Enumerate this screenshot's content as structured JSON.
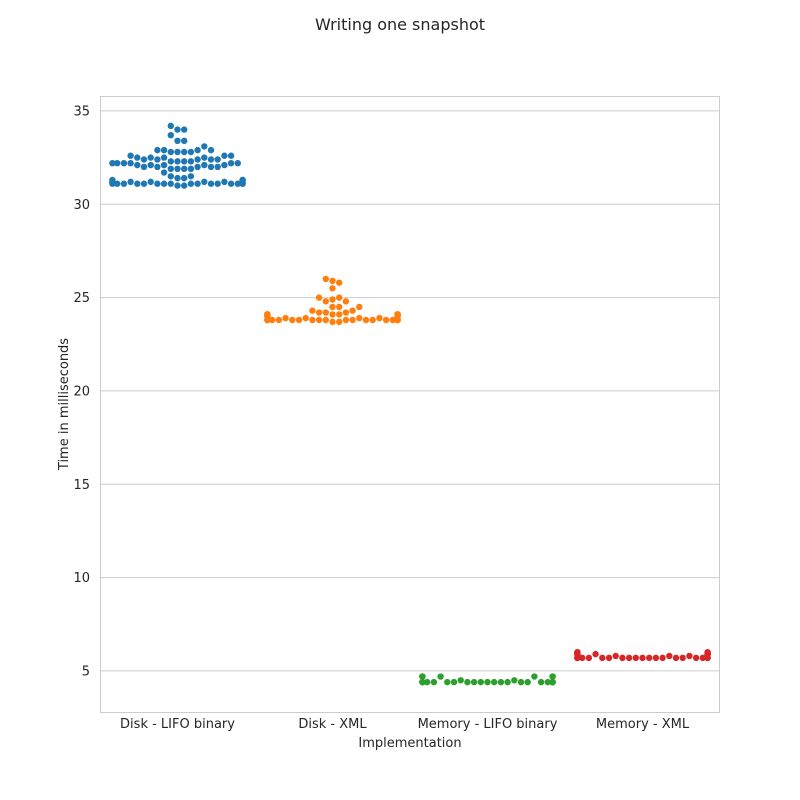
{
  "chart_data": {
    "type": "scatter",
    "subtype": "swarm",
    "title": "Writing one snapshot",
    "xlabel": "Implementation",
    "ylabel": "Time in milliseconds",
    "ylim": [
      2.8,
      35.8
    ],
    "yticks": [
      5,
      10,
      15,
      20,
      25,
      30,
      35
    ],
    "grid": true,
    "categories": [
      "Disk - LIFO binary",
      "Disk - XML",
      "Memory - LIFO binary",
      "Memory - XML"
    ],
    "colors": [
      "#1f77b4",
      "#ff7f0e",
      "#2ca02c",
      "#d62728"
    ],
    "series": [
      {
        "values": [
          34.2,
          34.0,
          34.0,
          33.7,
          33.4,
          33.4,
          33.1,
          32.9,
          32.9,
          32.9,
          32.9,
          32.8,
          32.8,
          32.8,
          32.8,
          32.6,
          32.6,
          32.6,
          32.5,
          32.5,
          32.5,
          32.5,
          32.4,
          32.4,
          32.4,
          32.4,
          32.4,
          32.3,
          32.3,
          32.3,
          32.3,
          32.2,
          32.2,
          32.2,
          32.2,
          32.2,
          32.2,
          32.1,
          32.1,
          32.1,
          32.1,
          32.1,
          32.0,
          32.0,
          32.0,
          32.0,
          32.0,
          31.9,
          31.9,
          31.9,
          31.9,
          31.7,
          31.5,
          31.5,
          31.4,
          31.4,
          31.3,
          31.3,
          31.3,
          31.2,
          31.2,
          31.2,
          31.2,
          31.2,
          31.2,
          31.2,
          31.1,
          31.1,
          31.1,
          31.1,
          31.1,
          31.1,
          31.1,
          31.1,
          31.1,
          31.1,
          31.1,
          31.1,
          31.1,
          31.1,
          31.1,
          31.1,
          31.0,
          31.0
        ]
      },
      {
        "values": [
          26.0,
          25.9,
          25.8,
          25.5,
          25.0,
          25.0,
          24.9,
          24.8,
          24.8,
          24.5,
          24.5,
          24.5,
          24.3,
          24.3,
          24.2,
          24.2,
          24.2,
          24.1,
          24.1,
          24.1,
          24.1,
          24.1,
          24.1,
          24.1,
          24.1,
          24.1,
          24.1,
          24.1,
          24.1,
          24.1,
          24.1,
          24.0,
          24.0,
          24.0,
          24.0,
          23.9,
          23.9,
          23.9,
          23.9,
          23.8,
          23.8,
          23.8,
          23.8,
          23.8,
          23.8,
          23.8,
          23.8,
          23.8,
          23.8,
          23.8,
          23.8,
          23.8,
          23.8,
          23.8,
          23.8,
          23.8,
          23.8,
          23.8,
          23.8,
          23.7,
          23.7
        ]
      },
      {
        "values": [
          4.7,
          4.7,
          4.7,
          4.7,
          4.7,
          4.7,
          4.7,
          4.5,
          4.5,
          4.4,
          4.4,
          4.4,
          4.4,
          4.4,
          4.4,
          4.4,
          4.4,
          4.4,
          4.4,
          4.4,
          4.4,
          4.4,
          4.4,
          4.4,
          4.4,
          4.4,
          4.4,
          4.4,
          4.4,
          4.4,
          4.4,
          4.4,
          4.4
        ]
      },
      {
        "values": [
          6.0,
          6.0,
          6.0,
          6.0,
          6.0,
          5.9,
          5.9,
          5.9,
          5.9,
          5.9,
          5.9,
          5.9,
          5.9,
          5.9,
          5.9,
          5.8,
          5.8,
          5.8,
          5.7,
          5.7,
          5.7,
          5.7,
          5.7,
          5.7,
          5.7,
          5.7,
          5.7,
          5.7,
          5.7,
          5.7,
          5.7,
          5.7,
          5.7,
          5.7,
          5.7,
          5.7,
          5.7,
          5.7,
          5.7,
          5.7,
          5.7
        ]
      }
    ]
  }
}
